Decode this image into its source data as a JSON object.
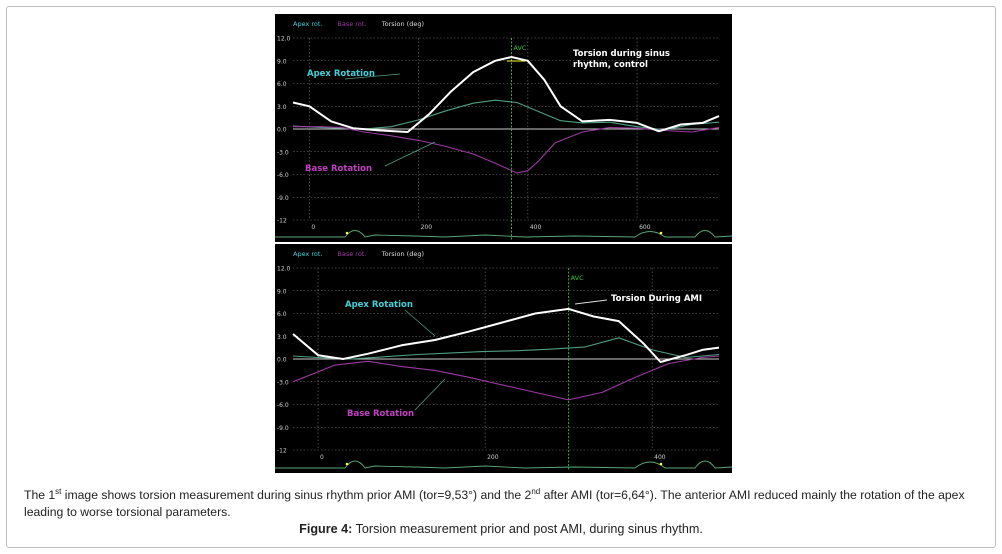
{
  "caption": {
    "part1": "The 1",
    "sup1": "st",
    "part2": " image shows torsion measurement during sinus rhythm prior AMI (tor=9,53°) and the 2",
    "sup2": "nd",
    "part3": " after AMI (tor=6,64°). The anterior AMI reduced mainly the rotation of the apex leading to worse torsional parameters."
  },
  "figure": {
    "label": "Figure 4:",
    "title": " Torsion measurement prior and post AMI, during sinus rhythm."
  },
  "colors": {
    "apex": "#4f9e86",
    "base": "#9a3aa0",
    "torsion": "#ffffff",
    "apex_label": "#44d0d8",
    "base_label": "#c040c0",
    "annot": "#ffff40",
    "avc": "#3cc43c",
    "grid": "#777777"
  },
  "chart_data": [
    {
      "type": "line",
      "legend": [
        "Apex rot.",
        "Base rot.",
        "Torsion (deg)"
      ],
      "xlim": [
        -30,
        750
      ],
      "ylim": [
        -12,
        12
      ],
      "x_ticks": [
        "0",
        "200",
        "400",
        "600"
      ],
      "y_ticks": [
        "12.0",
        "9.0",
        "6.0",
        "3.0",
        "0.0",
        "-3.0",
        "-6.0",
        "-9.0",
        "-12"
      ],
      "avc_label": "AVC",
      "avc_x": 370,
      "annotations": {
        "apex": "Apex Rotation",
        "base": "Base Rotation",
        "torsion_line1": "Torsion during sinus",
        "torsion_line2": "rhythm, control"
      },
      "series": [
        {
          "name": "Apex rot.",
          "x": [
            -30,
            20,
            60,
            100,
            150,
            200,
            250,
            300,
            340,
            380,
            420,
            460,
            500,
            550,
            600,
            650,
            700,
            750
          ],
          "y": [
            0.4,
            0.2,
            0.1,
            0.0,
            0.3,
            1.2,
            2.4,
            3.4,
            3.8,
            3.5,
            2.3,
            1.1,
            0.8,
            0.9,
            0.3,
            -0.1,
            0.6,
            0.9
          ]
        },
        {
          "name": "Base rot.",
          "x": [
            -30,
            20,
            60,
            100,
            150,
            200,
            250,
            300,
            340,
            380,
            400,
            420,
            450,
            500,
            550,
            600,
            650,
            700,
            750
          ],
          "y": [
            0.3,
            0.3,
            0.2,
            -0.4,
            -0.9,
            -1.5,
            -2.3,
            -3.3,
            -4.5,
            -5.8,
            -5.5,
            -4.2,
            -1.8,
            -0.4,
            0.2,
            0.1,
            -0.2,
            -0.4,
            0.2
          ]
        },
        {
          "name": "Torsion (deg)",
          "x": [
            -30,
            0,
            40,
            80,
            130,
            180,
            220,
            260,
            300,
            340,
            370,
            400,
            430,
            460,
            500,
            550,
            600,
            640,
            680,
            720,
            750
          ],
          "y": [
            3.5,
            3.0,
            1.0,
            0.1,
            -0.2,
            -0.4,
            2.0,
            5.0,
            7.5,
            9.0,
            9.5,
            9.0,
            6.5,
            3.0,
            1.0,
            1.2,
            0.8,
            -0.3,
            0.6,
            0.8,
            1.7
          ]
        }
      ]
    },
    {
      "type": "line",
      "legend": [
        "Apex rot.",
        "Base rot.",
        "Torsion (deg)"
      ],
      "xlim": [
        -30,
        480
      ],
      "ylim": [
        -12,
        12
      ],
      "x_ticks": [
        "0",
        "200",
        "400"
      ],
      "y_ticks": [
        "12.0",
        "9.0",
        "6.0",
        "3.0",
        "0.0",
        "-3.0",
        "-6.0",
        "-9.0",
        "-12"
      ],
      "avc_label": "AVC",
      "avc_x": 300,
      "annotations": {
        "apex": "Apex Rotation",
        "base": "Base Rotation",
        "torsion_line1": "Torsion During AMI",
        "torsion_line2": ""
      },
      "series": [
        {
          "name": "Apex rot.",
          "x": [
            -30,
            0,
            40,
            80,
            120,
            160,
            200,
            240,
            280,
            320,
            360,
            400,
            440,
            480
          ],
          "y": [
            0.4,
            0.2,
            0.0,
            0.3,
            0.6,
            0.8,
            1.0,
            1.1,
            1.3,
            1.6,
            2.8,
            1.2,
            0.2,
            0.6
          ]
        },
        {
          "name": "Base rot.",
          "x": [
            -30,
            20,
            60,
            100,
            140,
            180,
            220,
            260,
            300,
            340,
            380,
            420,
            460,
            480
          ],
          "y": [
            -3.0,
            -0.8,
            -0.3,
            -1.0,
            -1.5,
            -2.4,
            -3.4,
            -4.4,
            -5.4,
            -4.4,
            -2.4,
            -0.6,
            0.2,
            0.4
          ]
        },
        {
          "name": "Torsion (deg)",
          "x": [
            -30,
            0,
            30,
            60,
            100,
            140,
            180,
            220,
            260,
            300,
            330,
            360,
            390,
            410,
            440,
            460,
            480
          ],
          "y": [
            3.3,
            0.5,
            0.0,
            0.7,
            1.8,
            2.5,
            3.6,
            4.8,
            6.0,
            6.6,
            5.6,
            5.0,
            2.0,
            -0.4,
            0.5,
            1.2,
            1.5
          ]
        }
      ]
    }
  ]
}
